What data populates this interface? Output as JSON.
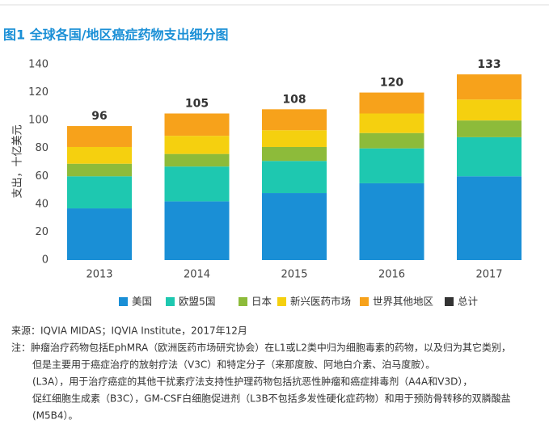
{
  "chart_data": {
    "type": "bar",
    "stacked": true,
    "title": "图1 全球各国/地区癌症药物支出细分图",
    "ylabel": "支出，十亿美元",
    "categories": [
      "2013",
      "2014",
      "2015",
      "2016",
      "2017"
    ],
    "series": [
      {
        "name": "美国",
        "color": "#1a8fd6",
        "values": [
          37,
          42,
          48,
          55,
          60
        ]
      },
      {
        "name": "欧盟5国",
        "color": "#1ec8b0",
        "values": [
          23,
          25,
          23,
          25,
          28
        ]
      },
      {
        "name": "日本",
        "color": "#8dbb3a",
        "values": [
          9,
          9,
          10,
          11,
          12
        ]
      },
      {
        "name": "新兴医药市场",
        "color": "#f5d00f",
        "values": [
          12,
          13,
          12,
          14,
          15
        ]
      },
      {
        "name": "世界其他地区",
        "color": "#f7a21b",
        "values": [
          15,
          16,
          15,
          15,
          18
        ]
      }
    ],
    "totals": {
      "name": "总计",
      "color": "#333333",
      "values": [
        96,
        105,
        108,
        120,
        133
      ]
    },
    "ylim": [
      0,
      140
    ],
    "yticks": [
      0,
      20,
      40,
      60,
      80,
      100,
      120,
      140
    ]
  },
  "notes": {
    "source": "来源：IQVIA MIDAS；IQVIA Institute，2017年12月",
    "note_label": "注：",
    "note_lines": [
      "肿瘤治疗药物包括EphMRA（欧洲医药市场研究协会）在L1或L2类中归为细胞毒素的药物，以及归为其它类别，",
      "但是主要用于癌症治疗的放射疗法（V3C）和特定分子（来那度胺、阿地白介素、泊马度胺）。",
      "(L3A），用于治疗癌症的其他干扰素疗法支持性护理药物包括抗恶性肿瘤和癌症排毒剂（A4A和V3D），",
      "促红细胞生成素（B3C），GM-CSF白细胞促进剂（L3B不包括多发性硬化症药物）和用于预防骨转移的双膦酸盐",
      "(M5B4）。"
    ]
  }
}
